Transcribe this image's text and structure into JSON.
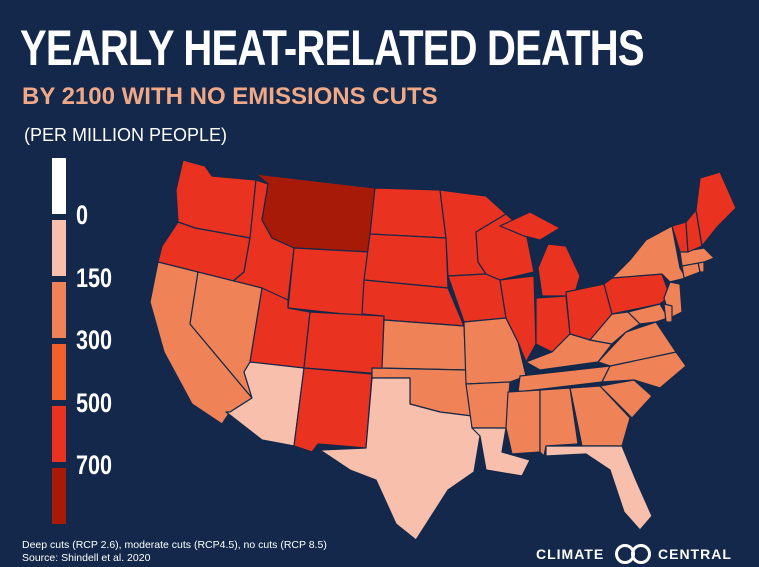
{
  "title": "YEARLY HEAT-RELATED DEATHS",
  "subtitle": "BY 2100 WITH NO EMISSIONS CUTS",
  "units": "(PER MILLION PEOPLE)",
  "legend": [
    {
      "label": "",
      "color": "#ffffff"
    },
    {
      "label": "0",
      "color": "#f7bfac"
    },
    {
      "label": "150",
      "color": "#ef8357"
    },
    {
      "label": "300",
      "color": "#f2602c"
    },
    {
      "label": "500",
      "color": "#ea3221"
    },
    {
      "label": "700",
      "color": "#a81a08"
    }
  ],
  "footnote": {
    "line1": "Deep cuts (RCP 2.6), moderate cuts (RCP4.5), no cuts (RCP 8.5)",
    "line2": "Source: Shindell et al. 2020"
  },
  "brand": {
    "left": "CLIMATE",
    "right": "CENTRAL"
  },
  "map_data": {
    "type": "choropleth",
    "classes": {
      "c1": "#f7bfac",
      "c2": "#ef8357",
      "c3": "#ea3221",
      "c4": "#a81a08"
    },
    "states": [
      {
        "name": "Washington",
        "class": "c3"
      },
      {
        "name": "Oregon",
        "class": "c3"
      },
      {
        "name": "California",
        "class": "c2"
      },
      {
        "name": "Idaho",
        "class": "c3"
      },
      {
        "name": "Nevada",
        "class": "c2"
      },
      {
        "name": "Montana",
        "class": "c4"
      },
      {
        "name": "Wyoming",
        "class": "c3"
      },
      {
        "name": "Utah",
        "class": "c3"
      },
      {
        "name": "Arizona",
        "class": "c1"
      },
      {
        "name": "Colorado",
        "class": "c3"
      },
      {
        "name": "New Mexico",
        "class": "c3"
      },
      {
        "name": "North Dakota",
        "class": "c3"
      },
      {
        "name": "South Dakota",
        "class": "c3"
      },
      {
        "name": "Nebraska",
        "class": "c3"
      },
      {
        "name": "Kansas",
        "class": "c2"
      },
      {
        "name": "Oklahoma",
        "class": "c2"
      },
      {
        "name": "Texas",
        "class": "c1"
      },
      {
        "name": "Minnesota",
        "class": "c3"
      },
      {
        "name": "Iowa",
        "class": "c3"
      },
      {
        "name": "Missouri",
        "class": "c2"
      },
      {
        "name": "Arkansas",
        "class": "c2"
      },
      {
        "name": "Louisiana",
        "class": "c1"
      },
      {
        "name": "Wisconsin",
        "class": "c3"
      },
      {
        "name": "Illinois",
        "class": "c3"
      },
      {
        "name": "Michigan",
        "class": "c3"
      },
      {
        "name": "Indiana",
        "class": "c3"
      },
      {
        "name": "Ohio",
        "class": "c3"
      },
      {
        "name": "Kentucky",
        "class": "c2"
      },
      {
        "name": "Tennessee",
        "class": "c2"
      },
      {
        "name": "Mississippi",
        "class": "c2"
      },
      {
        "name": "Alabama",
        "class": "c2"
      },
      {
        "name": "Georgia",
        "class": "c2"
      },
      {
        "name": "Florida",
        "class": "c1"
      },
      {
        "name": "South Carolina",
        "class": "c2"
      },
      {
        "name": "North Carolina",
        "class": "c2"
      },
      {
        "name": "Virginia",
        "class": "c2"
      },
      {
        "name": "West Virginia",
        "class": "c2"
      },
      {
        "name": "Pennsylvania",
        "class": "c3"
      },
      {
        "name": "New York",
        "class": "c2"
      },
      {
        "name": "New Jersey",
        "class": "c2"
      },
      {
        "name": "Maryland",
        "class": "c2"
      },
      {
        "name": "Delaware",
        "class": "c2"
      },
      {
        "name": "Connecticut",
        "class": "c2"
      },
      {
        "name": "Rhode Island",
        "class": "c2"
      },
      {
        "name": "Massachusetts",
        "class": "c2"
      },
      {
        "name": "Vermont",
        "class": "c3"
      },
      {
        "name": "New Hampshire",
        "class": "c3"
      },
      {
        "name": "Maine",
        "class": "c3"
      }
    ]
  }
}
